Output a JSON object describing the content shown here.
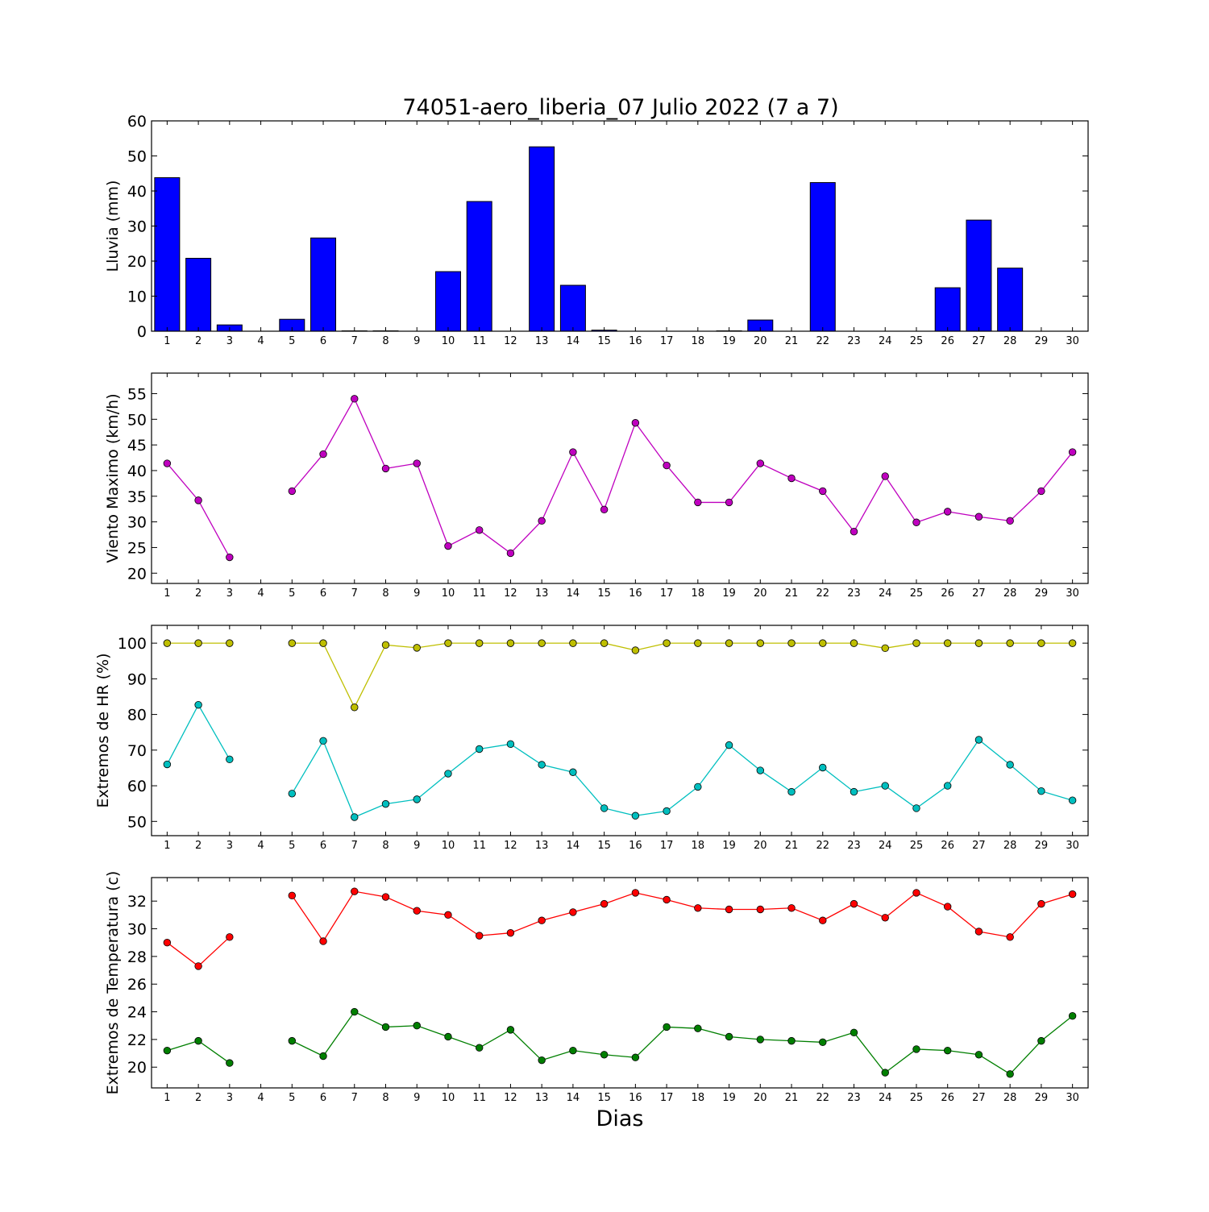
{
  "title": "74051-aero_liberia_07 Julio 2022  (7 a 7)",
  "xlabel": "Dias",
  "chart_data": [
    {
      "type": "bar",
      "ylabel": "Lluvia (mm)",
      "ylim": [
        0,
        60
      ],
      "yticks": [
        0,
        10,
        20,
        30,
        40,
        50,
        60
      ],
      "x": [
        1,
        2,
        3,
        4,
        5,
        6,
        7,
        8,
        9,
        10,
        11,
        12,
        13,
        14,
        15,
        16,
        17,
        18,
        19,
        20,
        21,
        22,
        23,
        24,
        25,
        26,
        27,
        28,
        29,
        30
      ],
      "series": [
        {
          "color": "#0000ff",
          "values": [
            43.8,
            20.8,
            1.8,
            null,
            3.4,
            26.6,
            0.1,
            0.1,
            0,
            17.0,
            37.0,
            0,
            52.6,
            13.1,
            0.3,
            0,
            0,
            0,
            0.1,
            3.2,
            0,
            42.4,
            0,
            0,
            0,
            12.4,
            31.7,
            18.0,
            0,
            0
          ]
        }
      ]
    },
    {
      "type": "line",
      "ylabel": "Viento Maximo (km/h)",
      "ylim": [
        18,
        59
      ],
      "yticks": [
        20,
        25,
        30,
        35,
        40,
        45,
        50,
        55
      ],
      "x": [
        1,
        2,
        3,
        4,
        5,
        6,
        7,
        8,
        9,
        10,
        11,
        12,
        13,
        14,
        15,
        16,
        17,
        18,
        19,
        20,
        21,
        22,
        23,
        24,
        25,
        26,
        27,
        28,
        29,
        30
      ],
      "series": [
        {
          "color": "#bf00bf",
          "values": [
            41.4,
            34.2,
            23.1,
            null,
            36.0,
            43.2,
            54.0,
            40.4,
            41.4,
            25.3,
            28.4,
            23.9,
            30.2,
            43.6,
            32.4,
            49.3,
            41.0,
            33.8,
            33.8,
            41.4,
            38.5,
            36.0,
            28.1,
            38.9,
            29.9,
            32.0,
            31.0,
            30.2,
            36.0,
            43.6
          ]
        }
      ]
    },
    {
      "type": "line",
      "ylabel": "Extremos de HR (%)",
      "ylim": [
        46,
        105
      ],
      "yticks": [
        50,
        60,
        70,
        80,
        90,
        100
      ],
      "x": [
        1,
        2,
        3,
        4,
        5,
        6,
        7,
        8,
        9,
        10,
        11,
        12,
        13,
        14,
        15,
        16,
        17,
        18,
        19,
        20,
        21,
        22,
        23,
        24,
        25,
        26,
        27,
        28,
        29,
        30
      ],
      "series": [
        {
          "color": "#bfbf00",
          "values": [
            100,
            100,
            100,
            null,
            100,
            100,
            82,
            99.5,
            98.7,
            100,
            100,
            100,
            100,
            100,
            100,
            98,
            100,
            100,
            100,
            100,
            100,
            100,
            100,
            98.6,
            100,
            100,
            100,
            100,
            100,
            100
          ]
        },
        {
          "color": "#00bfbf",
          "values": [
            66,
            82.7,
            67.4,
            null,
            57.8,
            72.6,
            51.2,
            54.9,
            56.2,
            63.4,
            70.3,
            71.7,
            65.9,
            63.8,
            53.7,
            51.6,
            52.9,
            59.7,
            71.4,
            64.3,
            58.3,
            65.1,
            58.3,
            60.0,
            53.7,
            60.0,
            72.9,
            65.9,
            58.5,
            55.9
          ]
        }
      ]
    },
    {
      "type": "line",
      "ylabel": "Extremos de Temperatura (c)",
      "ylim": [
        18.5,
        33.7
      ],
      "yticks": [
        20,
        22,
        24,
        26,
        28,
        30,
        32
      ],
      "x": [
        1,
        2,
        3,
        4,
        5,
        6,
        7,
        8,
        9,
        10,
        11,
        12,
        13,
        14,
        15,
        16,
        17,
        18,
        19,
        20,
        21,
        22,
        23,
        24,
        25,
        26,
        27,
        28,
        29,
        30
      ],
      "series": [
        {
          "color": "#ff0000",
          "values": [
            29.0,
            27.3,
            29.4,
            null,
            32.4,
            29.1,
            32.7,
            32.3,
            31.3,
            31.0,
            29.5,
            29.7,
            30.6,
            31.2,
            31.8,
            32.6,
            32.1,
            31.5,
            31.4,
            31.4,
            31.5,
            30.6,
            31.8,
            30.8,
            32.6,
            31.6,
            29.8,
            29.4,
            31.8,
            32.5
          ]
        },
        {
          "color": "#007f00",
          "values": [
            21.2,
            21.9,
            20.3,
            null,
            21.9,
            20.8,
            24.0,
            22.9,
            23.0,
            22.2,
            21.4,
            22.7,
            20.5,
            21.2,
            20.9,
            20.7,
            22.9,
            22.8,
            22.2,
            22.0,
            21.9,
            21.8,
            22.5,
            19.6,
            21.3,
            21.2,
            20.9,
            19.5,
            21.9,
            23.7
          ]
        }
      ]
    }
  ]
}
